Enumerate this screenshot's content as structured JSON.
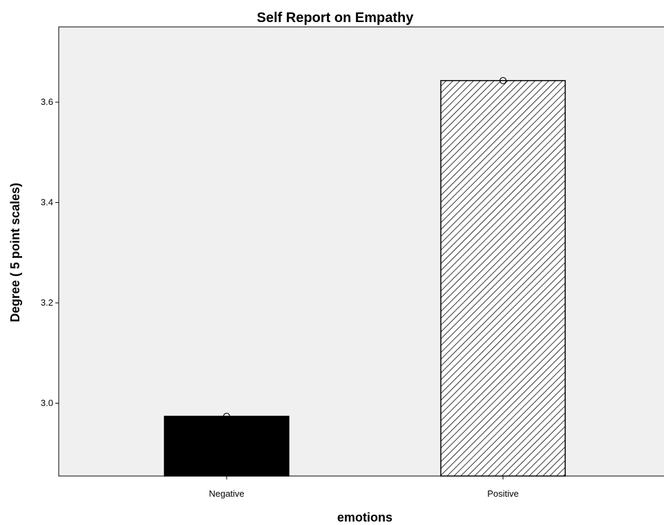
{
  "chart_data": {
    "type": "bar",
    "title": "Self Report on Empathy",
    "xlabel": "emotions",
    "ylabel": "Degree ( 5 point scales)",
    "categories": [
      "Negative",
      "Positive"
    ],
    "values": [
      2.974,
      3.643
    ],
    "ylim": [
      2.855,
      3.75
    ],
    "yticks": [
      "3.0",
      "3.2",
      "3.4",
      "3.6"
    ],
    "bar_styles": [
      "solid-black",
      "diagonal-hatch"
    ],
    "markers": "open-circle-at-mean",
    "grid": false,
    "legend": "none",
    "colors": {
      "plot_background": "#f0f0f0",
      "bar_fill": "#000000",
      "hatch": "#000000"
    }
  }
}
